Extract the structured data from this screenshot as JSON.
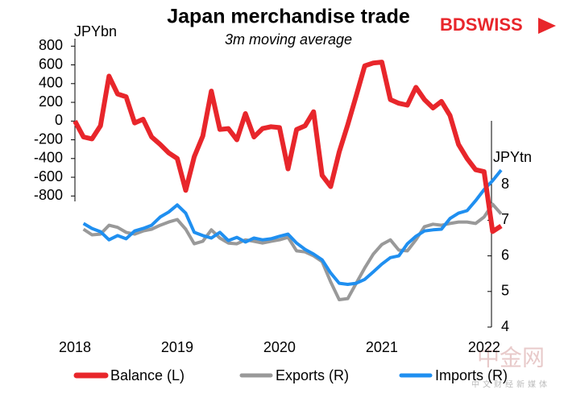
{
  "chart_data": {
    "type": "line",
    "title": "Japan merchandise trade",
    "subtitle": "3m moving average",
    "y_label": "JPYbn",
    "y2_label": "JPYtn",
    "logo": "BDSWISS",
    "watermark": "中金网",
    "watermark_sub": "中文财经新媒体",
    "categories": [
      "2018",
      null,
      null,
      null,
      null,
      null,
      null,
      null,
      null,
      null,
      null,
      null,
      "2019",
      null,
      null,
      null,
      null,
      null,
      null,
      null,
      null,
      null,
      null,
      null,
      "2020",
      null,
      null,
      null,
      null,
      null,
      null,
      null,
      null,
      null,
      null,
      null,
      "2021",
      null,
      null,
      null,
      null,
      null,
      null,
      null,
      null,
      null,
      null,
      null,
      "2022",
      null,
      null
    ],
    "series": [
      {
        "name": "Balance (L)",
        "color": "#e8262b",
        "axis": "y",
        "values": [
          0,
          -170,
          -190,
          -50,
          480,
          290,
          260,
          -20,
          20,
          -170,
          -250,
          -340,
          -400,
          -740,
          -380,
          -160,
          320,
          -90,
          -80,
          -200,
          80,
          -170,
          -80,
          -60,
          -70,
          -510,
          -90,
          -50,
          100,
          -580,
          -700,
          -330,
          -40,
          270,
          590,
          620,
          630,
          230,
          190,
          170,
          360,
          230,
          140,
          210,
          60,
          -250,
          -400,
          -520,
          -540,
          -1180,
          -1120
        ]
      },
      {
        "name": "Exports (R)",
        "color": "#999999",
        "axis": "y2",
        "values": [
          null,
          6.75,
          6.59,
          6.61,
          6.86,
          6.8,
          6.66,
          6.61,
          6.7,
          6.75,
          6.86,
          6.95,
          7.02,
          6.75,
          6.34,
          6.41,
          6.73,
          6.5,
          6.36,
          6.34,
          6.45,
          6.41,
          6.36,
          6.41,
          6.45,
          6.52,
          6.14,
          6.11,
          6.0,
          5.84,
          5.27,
          4.77,
          4.8,
          5.23,
          5.66,
          6.05,
          6.32,
          6.45,
          6.16,
          6.14,
          6.45,
          6.82,
          6.89,
          6.86,
          6.91,
          6.95,
          6.95,
          6.91,
          7.09,
          7.45,
          7.18
        ]
      },
      {
        "name": "Imports (R)",
        "color": "#1f8ff0",
        "axis": "y2",
        "values": [
          null,
          6.91,
          6.77,
          6.68,
          6.45,
          6.57,
          6.48,
          6.7,
          6.77,
          6.86,
          7.09,
          7.23,
          7.43,
          7.2,
          6.66,
          6.57,
          6.5,
          6.66,
          6.43,
          6.52,
          6.39,
          6.5,
          6.45,
          6.48,
          6.55,
          6.61,
          6.36,
          6.18,
          6.05,
          5.89,
          5.52,
          5.23,
          5.2,
          5.23,
          5.34,
          5.55,
          5.77,
          5.95,
          6.0,
          6.34,
          6.55,
          6.7,
          6.73,
          6.75,
          7.05,
          7.2,
          7.27,
          7.55,
          7.86,
          8.11,
          8.41
        ]
      }
    ],
    "ylim": [
      -2200,
      880
    ],
    "yticks": [
      800,
      600,
      400,
      200,
      0,
      -200,
      -400,
      -600,
      -800
    ],
    "y2lim": [
      4,
      12.1
    ],
    "y2ticks": [
      4,
      5,
      6,
      7,
      8
    ],
    "legend": "bottom"
  }
}
